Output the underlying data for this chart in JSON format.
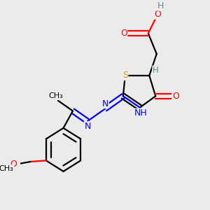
{
  "bg_color": "#ebebeb",
  "atom_colors": {
    "C": "#000000",
    "H": "#5f8a8a",
    "O": "#ff0000",
    "N": "#0000ff",
    "S": "#ccaa00"
  },
  "figsize": [
    3.0,
    3.0
  ],
  "dpi": 100,
  "xlim": [
    0.05,
    0.95
  ],
  "ylim": [
    0.05,
    0.95
  ]
}
